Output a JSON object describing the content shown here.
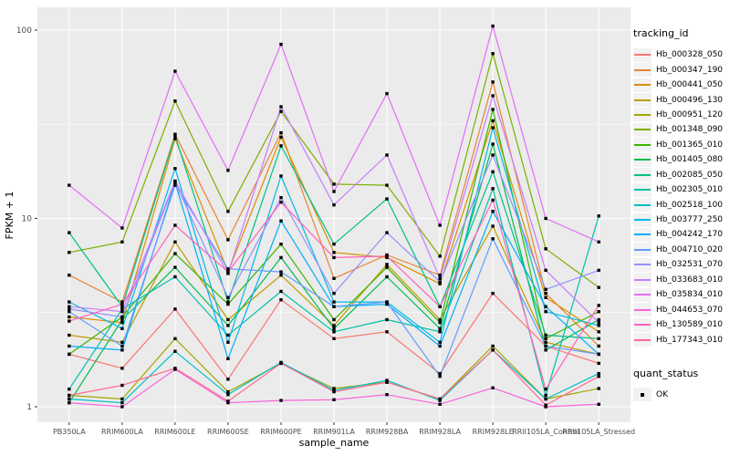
{
  "theme": {
    "panel_bg": "#EBEBEB",
    "grid_color": "#FFFFFF",
    "tick_color": "#333333",
    "tick_label_color": "#4D4D4D",
    "axis_title_color": "#000000",
    "legend_key_bg": "#F2F2F2",
    "point_color": "#000000"
  },
  "chart_data": {
    "type": "line",
    "title": "",
    "xlabel": "sample_name",
    "ylabel": "FPKM + 1",
    "y_scale": "log10",
    "y_ticks": [
      1,
      10,
      100
    ],
    "y_tick_labels": [
      "1",
      "10",
      "100"
    ],
    "y_minor_ticks": [
      3.162,
      31.623
    ],
    "ylim": [
      0.84,
      130
    ],
    "grid": "on",
    "legend_position": "right",
    "legend_title": "tracking_id",
    "shape_legend": {
      "title": "quant_status",
      "items": [
        "OK"
      ],
      "point_shape": "filled-square"
    },
    "categories": [
      "PB350LA",
      "RRIM600LA",
      "RRIM600LE",
      "RRIM600SE",
      "RRIM600PE",
      "RRIM901LA",
      "RRIM928BA",
      "RRIM928LA",
      "RRIM928LE",
      "RRII105LA_Control",
      "RRII105LA_Stressed"
    ],
    "series": [
      {
        "name": "Hb_000328_050",
        "color": "#F8766D",
        "values": [
          1.9,
          1.6,
          3.3,
          1.4,
          3.7,
          2.3,
          2.5,
          1.5,
          4.0,
          2.1,
          1.7
        ]
      },
      {
        "name": "Hb_000347_190",
        "color": "#EA8331",
        "values": [
          5.0,
          3.6,
          28.0,
          7.7,
          28.5,
          4.8,
          6.4,
          5.0,
          53.0,
          4.0,
          2.1
        ]
      },
      {
        "name": "Hb_000441_050",
        "color": "#D89000",
        "values": [
          3.0,
          2.8,
          26.5,
          5.2,
          27.0,
          6.6,
          6.2,
          4.5,
          33.0,
          3.8,
          2.5
        ]
      },
      {
        "name": "Hb_000496_130",
        "color": "#C09B00",
        "values": [
          2.4,
          2.2,
          7.5,
          2.9,
          5.0,
          2.7,
          5.7,
          2.9,
          9.1,
          2.2,
          1.9
        ]
      },
      {
        "name": "Hb_000951_120",
        "color": "#A3A500",
        "values": [
          1.15,
          1.1,
          2.3,
          1.2,
          1.7,
          1.25,
          1.35,
          1.1,
          2.1,
          1.1,
          1.25
        ]
      },
      {
        "name": "Hb_001348_090",
        "color": "#7CAE00",
        "values": [
          6.6,
          7.5,
          42.0,
          10.9,
          37.0,
          15.2,
          15.0,
          6.3,
          75.0,
          6.9,
          4.3
        ]
      },
      {
        "name": "Hb_001365_010",
        "color": "#39B600",
        "values": [
          1.9,
          3.0,
          6.5,
          3.5,
          7.3,
          2.9,
          5.5,
          2.8,
          37.9,
          2.3,
          3.2
        ]
      },
      {
        "name": "Hb_001405_080",
        "color": "#00BB4E",
        "values": [
          1.05,
          2.9,
          5.5,
          2.7,
          6.2,
          2.6,
          4.9,
          2.6,
          24.8,
          2.0,
          2.9
        ]
      },
      {
        "name": "Hb_002085_050",
        "color": "#00C087",
        "values": [
          8.4,
          3.4,
          27.5,
          3.6,
          24.3,
          7.3,
          12.7,
          3.4,
          17.7,
          2.4,
          2.3
        ]
      },
      {
        "name": "Hb_002305_010",
        "color": "#00C1A7",
        "values": [
          1.24,
          3.3,
          4.9,
          2.4,
          4.1,
          2.5,
          2.9,
          2.5,
          14.4,
          1.15,
          10.3
        ]
      },
      {
        "name": "Hb_002518_100",
        "color": "#00BFC4",
        "values": [
          1.1,
          1.05,
          1.97,
          1.16,
          1.72,
          1.22,
          1.38,
          1.08,
          2.0,
          1.1,
          1.5
        ]
      },
      {
        "name": "Hb_003777_250",
        "color": "#00B9E3",
        "values": [
          3.6,
          2.6,
          18.4,
          2.2,
          16.8,
          3.6,
          3.6,
          2.2,
          30.3,
          3.2,
          2.7
        ]
      },
      {
        "name": "Hb_004242_170",
        "color": "#00AEFA",
        "values": [
          2.1,
          2.0,
          15.5,
          1.8,
          9.7,
          3.4,
          3.5,
          2.1,
          10.9,
          3.4,
          1.9
        ]
      },
      {
        "name": "Hb_004710_020",
        "color": "#619CFF",
        "values": [
          3.2,
          2.1,
          15.0,
          5.4,
          5.2,
          3.4,
          3.6,
          1.45,
          7.8,
          2.1,
          1.9
        ]
      },
      {
        "name": "Hb_032531_070",
        "color": "#9590FF",
        "values": [
          3.3,
          3.0,
          15.6,
          3.8,
          12.9,
          4.0,
          8.4,
          4.6,
          21.7,
          4.2,
          5.3
        ]
      },
      {
        "name": "Hb_033683_010",
        "color": "#C77CFF",
        "values": [
          3.4,
          3.2,
          15.8,
          5.1,
          39.2,
          11.8,
          21.7,
          4.8,
          44.8,
          5.3,
          2.8
        ]
      },
      {
        "name": "Hb_035834_010",
        "color": "#E36EF6",
        "values": [
          15.0,
          8.9,
          60.5,
          18.0,
          84.0,
          13.9,
          46.0,
          9.2,
          105.0,
          10.0,
          7.5
        ]
      },
      {
        "name": "Hb_044653_070",
        "color": "#F863DF",
        "values": [
          1.05,
          1.0,
          1.58,
          1.05,
          1.08,
          1.09,
          1.16,
          1.03,
          1.26,
          1.0,
          1.03
        ]
      },
      {
        "name": "Hb_130589_010",
        "color": "#FF62BC",
        "values": [
          2.85,
          3.5,
          9.2,
          5.2,
          12.2,
          6.2,
          6.3,
          3.4,
          12.5,
          1.24,
          3.45
        ]
      },
      {
        "name": "Hb_177343_010",
        "color": "#FF6C91",
        "values": [
          1.15,
          1.3,
          1.6,
          1.07,
          1.7,
          1.2,
          1.35,
          1.1,
          2.0,
          1.02,
          1.45
        ]
      }
    ]
  }
}
